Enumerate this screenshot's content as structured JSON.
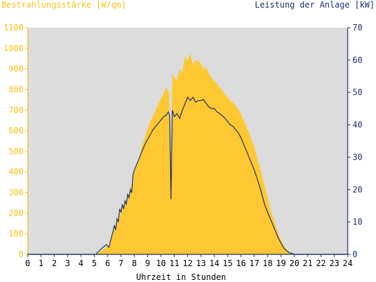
{
  "chart_data": {
    "type": "area",
    "y_left_label": "Bestrahlungsstärke [W/qm]",
    "y_right_label": "Leistung der Anlage [kW]",
    "xlabel": "Uhrzeit in Stunden",
    "xlim": [
      0,
      24
    ],
    "ylim_left": [
      0,
      1100
    ],
    "ylim_right": [
      0,
      70
    ],
    "x_ticks": [
      0,
      1,
      2,
      3,
      4,
      5,
      6,
      7,
      8,
      9,
      10,
      11,
      12,
      13,
      14,
      15,
      16,
      17,
      18,
      19,
      20,
      21,
      22,
      23,
      24
    ],
    "y_left_ticks": [
      0,
      100,
      200,
      300,
      400,
      500,
      600,
      700,
      800,
      900,
      1000,
      1100
    ],
    "y_right_ticks": [
      0,
      10,
      20,
      30,
      40,
      50,
      60,
      70
    ],
    "grid": false,
    "plot_background": "#dcdcdc",
    "series": [
      {
        "axis": "left",
        "color": "#fec832",
        "points": [
          [
            0,
            0
          ],
          [
            5,
            0
          ],
          [
            5.2,
            2
          ],
          [
            5.5,
            15
          ],
          [
            5.8,
            30
          ],
          [
            6.0,
            45
          ],
          [
            6.1,
            35
          ],
          [
            6.2,
            60
          ],
          [
            6.4,
            110
          ],
          [
            6.5,
            140
          ],
          [
            6.6,
            115
          ],
          [
            6.7,
            165
          ],
          [
            6.8,
            150
          ],
          [
            6.9,
            200
          ],
          [
            7.0,
            185
          ],
          [
            7.1,
            245
          ],
          [
            7.2,
            215
          ],
          [
            7.3,
            270
          ],
          [
            7.4,
            240
          ],
          [
            7.5,
            300
          ],
          [
            7.6,
            275
          ],
          [
            7.7,
            335
          ],
          [
            7.8,
            315
          ],
          [
            7.9,
            380
          ],
          [
            8.0,
            400
          ],
          [
            8.2,
            440
          ],
          [
            8.4,
            480
          ],
          [
            8.6,
            530
          ],
          [
            8.8,
            570
          ],
          [
            9.0,
            610
          ],
          [
            9.2,
            645
          ],
          [
            9.4,
            670
          ],
          [
            9.6,
            700
          ],
          [
            9.8,
            730
          ],
          [
            10.0,
            755
          ],
          [
            10.2,
            780
          ],
          [
            10.4,
            810
          ],
          [
            10.6,
            790
          ],
          [
            10.75,
            320
          ],
          [
            10.85,
            880
          ],
          [
            11.0,
            855
          ],
          [
            11.2,
            845
          ],
          [
            11.4,
            900
          ],
          [
            11.6,
            880
          ],
          [
            11.8,
            960
          ],
          [
            12.0,
            940
          ],
          [
            12.2,
            975
          ],
          [
            12.4,
            920
          ],
          [
            12.6,
            945
          ],
          [
            12.8,
            935
          ],
          [
            13.0,
            925
          ],
          [
            13.2,
            900
          ],
          [
            13.4,
            905
          ],
          [
            13.6,
            875
          ],
          [
            13.8,
            855
          ],
          [
            14.0,
            840
          ],
          [
            14.2,
            830
          ],
          [
            14.4,
            810
          ],
          [
            14.6,
            795
          ],
          [
            14.8,
            775
          ],
          [
            15.0,
            760
          ],
          [
            15.2,
            745
          ],
          [
            15.4,
            735
          ],
          [
            15.6,
            720
          ],
          [
            15.8,
            705
          ],
          [
            16.0,
            680
          ],
          [
            16.2,
            650
          ],
          [
            16.4,
            620
          ],
          [
            16.6,
            590
          ],
          [
            16.8,
            555
          ],
          [
            17.0,
            520
          ],
          [
            17.2,
            470
          ],
          [
            17.4,
            425
          ],
          [
            17.6,
            375
          ],
          [
            17.8,
            325
          ],
          [
            18.0,
            275
          ],
          [
            18.2,
            220
          ],
          [
            18.4,
            180
          ],
          [
            18.6,
            140
          ],
          [
            18.8,
            100
          ],
          [
            19.0,
            70
          ],
          [
            19.2,
            45
          ],
          [
            19.4,
            25
          ],
          [
            19.6,
            12
          ],
          [
            19.8,
            5
          ],
          [
            20.0,
            2
          ],
          [
            20.2,
            0
          ],
          [
            24,
            0
          ]
        ]
      },
      {
        "axis": "right",
        "color": "#1c2f6e",
        "points": [
          [
            0,
            0
          ],
          [
            5.1,
            0
          ],
          [
            5.3,
            0.8
          ],
          [
            5.6,
            2
          ],
          [
            5.9,
            3
          ],
          [
            6.1,
            2.2
          ],
          [
            6.2,
            4
          ],
          [
            6.4,
            7
          ],
          [
            6.5,
            9
          ],
          [
            6.6,
            7.5
          ],
          [
            6.7,
            11
          ],
          [
            6.8,
            10
          ],
          [
            6.9,
            14
          ],
          [
            7.0,
            13
          ],
          [
            7.1,
            15.5
          ],
          [
            7.2,
            14
          ],
          [
            7.3,
            16.5
          ],
          [
            7.4,
            15.5
          ],
          [
            7.5,
            18.5
          ],
          [
            7.6,
            17.5
          ],
          [
            7.7,
            20
          ],
          [
            7.8,
            19
          ],
          [
            7.9,
            24.5
          ],
          [
            8.0,
            26
          ],
          [
            8.2,
            28
          ],
          [
            8.4,
            30
          ],
          [
            8.6,
            32
          ],
          [
            8.8,
            34
          ],
          [
            9.0,
            35.5
          ],
          [
            9.2,
            37
          ],
          [
            9.4,
            38.5
          ],
          [
            9.6,
            39.5
          ],
          [
            9.8,
            40.5
          ],
          [
            10.0,
            41.5
          ],
          [
            10.2,
            42.5
          ],
          [
            10.4,
            43
          ],
          [
            10.55,
            44
          ],
          [
            10.65,
            43
          ],
          [
            10.75,
            17
          ],
          [
            10.85,
            44.5
          ],
          [
            11.0,
            42.5
          ],
          [
            11.2,
            43.5
          ],
          [
            11.4,
            42
          ],
          [
            11.6,
            44.5
          ],
          [
            11.8,
            46.5
          ],
          [
            12.0,
            48.5
          ],
          [
            12.2,
            47.5
          ],
          [
            12.4,
            48.5
          ],
          [
            12.6,
            47
          ],
          [
            12.8,
            47.5
          ],
          [
            13.0,
            47.5
          ],
          [
            13.2,
            47.8
          ],
          [
            13.4,
            46.5
          ],
          [
            13.6,
            45.5
          ],
          [
            13.8,
            45
          ],
          [
            14.0,
            45
          ],
          [
            14.2,
            44
          ],
          [
            14.4,
            43.5
          ],
          [
            14.6,
            42.8
          ],
          [
            14.8,
            42
          ],
          [
            15.0,
            41
          ],
          [
            15.2,
            40
          ],
          [
            15.4,
            39.5
          ],
          [
            15.6,
            38.5
          ],
          [
            15.8,
            37.5
          ],
          [
            16.0,
            36
          ],
          [
            16.2,
            34
          ],
          [
            16.4,
            32
          ],
          [
            16.6,
            30
          ],
          [
            16.8,
            28
          ],
          [
            17.0,
            26
          ],
          [
            17.2,
            23.5
          ],
          [
            17.4,
            21
          ],
          [
            17.6,
            18
          ],
          [
            17.8,
            15
          ],
          [
            18.0,
            13
          ],
          [
            18.2,
            11
          ],
          [
            18.4,
            9
          ],
          [
            18.6,
            7
          ],
          [
            18.8,
            5
          ],
          [
            19.0,
            3.5
          ],
          [
            19.2,
            2
          ],
          [
            19.4,
            1.2
          ],
          [
            19.6,
            0.6
          ],
          [
            19.8,
            0.3
          ],
          [
            20.0,
            0
          ],
          [
            24,
            0
          ]
        ]
      }
    ]
  }
}
